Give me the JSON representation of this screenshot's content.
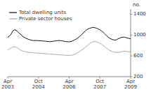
{
  "chart_data": {
    "type": "line",
    "y_label": "no.",
    "categories": [
      "Apr 2003",
      null,
      null,
      null,
      null,
      null,
      null,
      null,
      null,
      null,
      null,
      null,
      null,
      null,
      null,
      null,
      null,
      null,
      "Oct 2004",
      null,
      null,
      null,
      null,
      null,
      null,
      null,
      null,
      null,
      null,
      null,
      null,
      null,
      null,
      null,
      null,
      null,
      "Apr 2006",
      null,
      null,
      null,
      null,
      null,
      null,
      null,
      null,
      null,
      null,
      null,
      null,
      null,
      null,
      null,
      null,
      null,
      "Oct 2007",
      null,
      null,
      null,
      null,
      null,
      null,
      null,
      null,
      null,
      null,
      null,
      null,
      null,
      null,
      null,
      null,
      null,
      "Apr 2009"
    ],
    "series": [
      {
        "name": "Total dwelling units",
        "color": "#111111",
        "values": [
          960,
          980,
          1020,
          1080,
          1100,
          1090,
          1060,
          1030,
          1000,
          970,
          950,
          935,
          920,
          910,
          900,
          895,
          895,
          895,
          892,
          890,
          888,
          885,
          882,
          878,
          876,
          874,
          878,
          882,
          888,
          894,
          895,
          893,
          888,
          882,
          876,
          872,
          870,
          876,
          888,
          904,
          922,
          944,
          970,
          1000,
          1030,
          1065,
          1095,
          1118,
          1130,
          1140,
          1148,
          1142,
          1132,
          1118,
          1100,
          1078,
          1050,
          1018,
          985,
          955,
          934,
          918,
          908,
          902,
          916,
          934,
          946,
          956,
          962,
          954,
          944,
          936,
          928
        ]
      },
      {
        "name": "Private sector houses",
        "color": "#aaaaaa",
        "values": [
          710,
          730,
          755,
          770,
          775,
          765,
          745,
          722,
          702,
          690,
          682,
          676,
          671,
          667,
          663,
          660,
          657,
          654,
          651,
          649,
          647,
          644,
          641,
          638,
          636,
          634,
          631,
          629,
          627,
          624,
          621,
          619,
          617,
          614,
          612,
          610,
          608,
          610,
          616,
          626,
          642,
          662,
          684,
          706,
          728,
          752,
          778,
          806,
          834,
          858,
          872,
          876,
          870,
          858,
          842,
          820,
          796,
          770,
          745,
          720,
          700,
          686,
          676,
          668,
          666,
          668,
          674,
          682,
          690,
          688,
          683,
          678,
          674
        ]
      }
    ],
    "ylim": [
      200,
      1500
    ],
    "yticks": [
      200,
      600,
      1000,
      1400
    ],
    "grid": false,
    "legend": "top-left"
  }
}
